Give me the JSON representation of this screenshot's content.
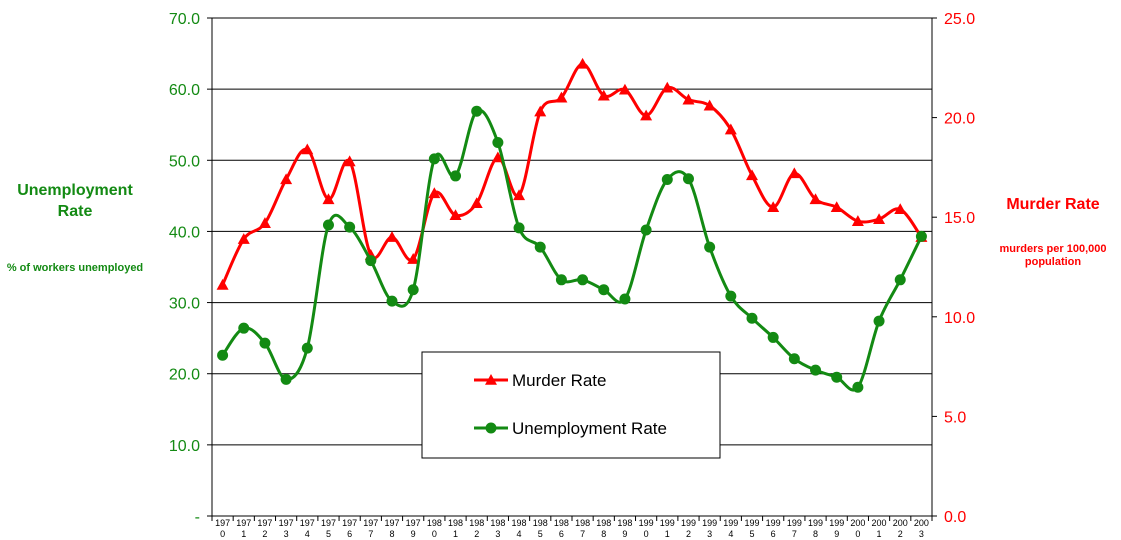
{
  "chart_data": {
    "type": "line",
    "x": [
      "1970",
      "1971",
      "1972",
      "1973",
      "1974",
      "1975",
      "1976",
      "1977",
      "1978",
      "1979",
      "1980",
      "1981",
      "1982",
      "1983",
      "1984",
      "1985",
      "1986",
      "1987",
      "1988",
      "1989",
      "1990",
      "1991",
      "1992",
      "1993",
      "1994",
      "1995",
      "1996",
      "1997",
      "1998",
      "1999",
      "2000",
      "2001",
      "2002",
      "2003"
    ],
    "x_tick_labels": [
      [
        "197",
        "0"
      ],
      [
        "197",
        "1"
      ],
      [
        "197",
        "2"
      ],
      [
        "197",
        "3"
      ],
      [
        "197",
        "4"
      ],
      [
        "197",
        "5"
      ],
      [
        "197",
        "6"
      ],
      [
        "197",
        "7"
      ],
      [
        "197",
        "8"
      ],
      [
        "197",
        "9"
      ],
      [
        "198",
        "0"
      ],
      [
        "198",
        "1"
      ],
      [
        "198",
        "2"
      ],
      [
        "198",
        "3"
      ],
      [
        "198",
        "4"
      ],
      [
        "198",
        "5"
      ],
      [
        "198",
        "6"
      ],
      [
        "198",
        "7"
      ],
      [
        "198",
        "8"
      ],
      [
        "198",
        "9"
      ],
      [
        "199",
        "0"
      ],
      [
        "199",
        "1"
      ],
      [
        "199",
        "2"
      ],
      [
        "199",
        "3"
      ],
      [
        "199",
        "4"
      ],
      [
        "199",
        "5"
      ],
      [
        "199",
        "6"
      ],
      [
        "199",
        "7"
      ],
      [
        "199",
        "8"
      ],
      [
        "199",
        "9"
      ],
      [
        "200",
        "0"
      ],
      [
        "200",
        "1"
      ],
      [
        "200",
        "2"
      ],
      [
        "200",
        "3"
      ]
    ],
    "left_axis": {
      "title": "Unemployment Rate",
      "subtitle": "% of workers unemployed",
      "ylim": [
        0,
        70
      ],
      "ticks": [
        0,
        10,
        20,
        30,
        40,
        50,
        60,
        70
      ],
      "tick_labels": [
        "-",
        "10.0",
        "20.0",
        "30.0",
        "40.0",
        "50.0",
        "60.0",
        "70.0"
      ],
      "color": "#138a13"
    },
    "right_axis": {
      "title": "Murder Rate",
      "subtitle": "murders per 100,000 population",
      "ylim": [
        0,
        25
      ],
      "ticks": [
        0,
        5,
        10,
        15,
        20,
        25
      ],
      "tick_labels": [
        "0.0",
        "5.0",
        "10.0",
        "15.0",
        "20.0",
        "25.0"
      ],
      "color": "#ff0000"
    },
    "series": [
      {
        "name": "Murder Rate",
        "axis": "right",
        "color": "#ff0000",
        "marker": "triangle",
        "values": [
          11.6,
          13.9,
          14.7,
          16.9,
          18.4,
          15.9,
          17.8,
          13.1,
          14.0,
          12.9,
          16.2,
          15.1,
          15.7,
          18.0,
          16.1,
          20.3,
          21.0,
          22.7,
          21.1,
          21.4,
          20.1,
          21.5,
          20.9,
          20.6,
          19.4,
          17.1,
          15.5,
          17.2,
          15.9,
          15.5,
          14.8,
          14.9,
          15.4,
          14.0
        ]
      },
      {
        "name": "Unemployment Rate",
        "axis": "left",
        "color": "#138a13",
        "marker": "circle",
        "values": [
          22.6,
          26.4,
          24.3,
          19.2,
          23.6,
          40.9,
          40.6,
          35.9,
          30.2,
          31.8,
          50.2,
          47.8,
          56.9,
          52.5,
          40.5,
          37.8,
          33.2,
          33.2,
          31.8,
          30.5,
          40.2,
          47.3,
          47.4,
          37.8,
          30.9,
          27.8,
          25.1,
          22.1,
          20.5,
          19.5,
          18.1,
          27.4,
          33.2,
          39.3
        ]
      }
    ],
    "legend": {
      "placement": "bottom-center",
      "entries": [
        "Murder Rate",
        "Unemployment Rate"
      ]
    },
    "grid": true
  }
}
